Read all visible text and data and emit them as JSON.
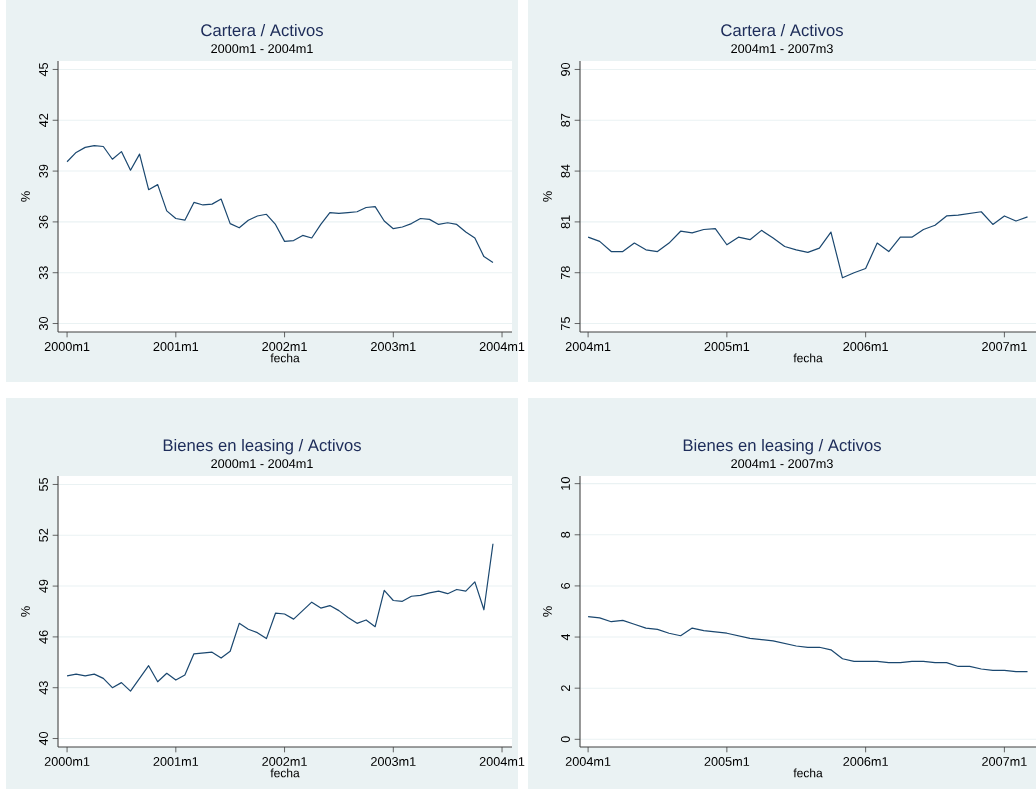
{
  "chart_data": [
    {
      "type": "line",
      "title": "Cartera / Activos",
      "subtitle": "2000m1 - 2004m1",
      "xlabel": "fecha",
      "ylabel": "%",
      "color": "#1a476f",
      "grid": "y",
      "x": [
        "2000-01",
        "2000-02",
        "2000-03",
        "2000-04",
        "2000-05",
        "2000-06",
        "2000-07",
        "2000-08",
        "2000-09",
        "2000-10",
        "2000-11",
        "2000-12",
        "2001-01",
        "2001-02",
        "2001-03",
        "2001-04",
        "2001-05",
        "2001-06",
        "2001-07",
        "2001-08",
        "2001-09",
        "2001-10",
        "2001-11",
        "2001-12",
        "2002-01",
        "2002-02",
        "2002-03",
        "2002-04",
        "2002-05",
        "2002-06",
        "2002-07",
        "2002-08",
        "2002-09",
        "2002-10",
        "2002-11",
        "2002-12",
        "2003-01",
        "2003-02",
        "2003-03",
        "2003-04",
        "2003-05",
        "2003-06",
        "2003-07",
        "2003-08",
        "2003-09",
        "2003-10",
        "2003-11",
        "2003-12"
      ],
      "values": [
        39.55,
        40.1,
        40.4,
        40.5,
        40.45,
        39.7,
        40.15,
        39.05,
        40.0,
        37.9,
        38.2,
        36.65,
        36.2,
        36.1,
        37.15,
        37.0,
        37.05,
        37.35,
        35.9,
        35.65,
        36.1,
        36.35,
        36.45,
        35.85,
        34.85,
        34.9,
        35.2,
        35.05,
        35.85,
        36.55,
        36.5,
        36.55,
        36.6,
        36.85,
        36.9,
        36.05,
        35.6,
        35.7,
        35.9,
        36.2,
        36.15,
        35.85,
        35.95,
        35.85,
        35.4,
        35.05,
        33.95,
        33.6
      ],
      "xlim": [
        "1999-12-01",
        "2004-02-04"
      ],
      "xticks": [
        {
          "value": "2000-01",
          "label": "2000m1"
        },
        {
          "value": "2001-01",
          "label": "2001m1"
        },
        {
          "value": "2002-01",
          "label": "2002m1"
        },
        {
          "value": "2003-01",
          "label": "2003m1"
        },
        {
          "value": "2004-01",
          "label": "2004m1"
        }
      ],
      "ylim": [
        29.5,
        45.5
      ],
      "yticks": [
        30,
        33,
        36,
        39,
        42,
        45
      ]
    },
    {
      "type": "line",
      "title": "Cartera / Activos",
      "subtitle": "2004m1 - 2007m3",
      "xlabel": "fecha",
      "ylabel": "%",
      "color": "#1a476f",
      "grid": "y",
      "x": [
        "2004-01",
        "2004-02",
        "2004-03",
        "2004-04",
        "2004-05",
        "2004-06",
        "2004-07",
        "2004-08",
        "2004-09",
        "2004-10",
        "2004-11",
        "2004-12",
        "2005-01",
        "2005-02",
        "2005-03",
        "2005-04",
        "2005-05",
        "2005-06",
        "2005-07",
        "2005-08",
        "2005-09",
        "2005-10",
        "2005-11",
        "2005-12",
        "2006-01",
        "2006-02",
        "2006-03",
        "2006-04",
        "2006-05",
        "2006-06",
        "2006-07",
        "2006-08",
        "2006-09",
        "2006-10",
        "2006-11",
        "2006-12",
        "2007-01",
        "2007-02",
        "2007-03"
      ],
      "values": [
        80.1,
        79.85,
        79.25,
        79.25,
        79.75,
        79.35,
        79.25,
        79.75,
        80.45,
        80.35,
        80.55,
        80.6,
        79.65,
        80.1,
        79.95,
        80.5,
        80.05,
        79.55,
        79.35,
        79.2,
        79.45,
        80.4,
        77.7,
        78.0,
        78.25,
        79.75,
        79.25,
        80.1,
        80.1,
        80.55,
        80.8,
        81.35,
        81.4,
        81.5,
        81.6,
        80.85,
        81.35,
        81.05,
        81.3
      ],
      "xlim": [
        "2003-12-10",
        "2007-03-23"
      ],
      "xticks": [
        {
          "value": "2004-01",
          "label": "2004m1"
        },
        {
          "value": "2005-01",
          "label": "2005m1"
        },
        {
          "value": "2006-01",
          "label": "2006m1"
        },
        {
          "value": "2007-01",
          "label": "2007m1"
        }
      ],
      "ylim": [
        74.5,
        90.5
      ],
      "yticks": [
        75,
        78,
        81,
        84,
        87,
        90
      ]
    },
    {
      "type": "line",
      "title": "Bienes en leasing / Activos",
      "subtitle": "2000m1 - 2004m1",
      "xlabel": "fecha",
      "ylabel": "%",
      "color": "#1a476f",
      "grid": "y",
      "x": [
        "2000-01",
        "2000-02",
        "2000-03",
        "2000-04",
        "2000-05",
        "2000-06",
        "2000-07",
        "2000-08",
        "2000-09",
        "2000-10",
        "2000-11",
        "2000-12",
        "2001-01",
        "2001-02",
        "2001-03",
        "2001-04",
        "2001-05",
        "2001-06",
        "2001-07",
        "2001-08",
        "2001-09",
        "2001-10",
        "2001-11",
        "2001-12",
        "2002-01",
        "2002-02",
        "2002-03",
        "2002-04",
        "2002-05",
        "2002-06",
        "2002-07",
        "2002-08",
        "2002-09",
        "2002-10",
        "2002-11",
        "2002-12",
        "2003-01",
        "2003-02",
        "2003-03",
        "2003-04",
        "2003-05",
        "2003-06",
        "2003-07",
        "2003-08",
        "2003-09",
        "2003-10",
        "2003-11",
        "2003-12"
      ],
      "values": [
        43.7,
        43.8,
        43.7,
        43.8,
        43.55,
        43.0,
        43.3,
        42.8,
        43.55,
        44.3,
        43.35,
        43.85,
        43.45,
        43.75,
        45.0,
        45.05,
        45.1,
        44.75,
        45.15,
        46.8,
        46.45,
        46.25,
        45.9,
        47.4,
        47.35,
        47.05,
        47.55,
        48.05,
        47.7,
        47.85,
        47.55,
        47.15,
        46.8,
        47.0,
        46.6,
        48.75,
        48.15,
        48.1,
        48.4,
        48.45,
        48.6,
        48.7,
        48.55,
        48.8,
        48.7,
        49.25,
        47.6,
        51.5
      ],
      "xlim": [
        "1999-12-01",
        "2004-02-04"
      ],
      "xticks": [
        {
          "value": "2000-01",
          "label": "2000m1"
        },
        {
          "value": "2001-01",
          "label": "2001m1"
        },
        {
          "value": "2002-01",
          "label": "2002m1"
        },
        {
          "value": "2003-01",
          "label": "2003m1"
        },
        {
          "value": "2004-01",
          "label": "2004m1"
        }
      ],
      "ylim": [
        39.5,
        55.5
      ],
      "yticks": [
        40,
        43,
        46,
        49,
        52,
        55
      ]
    },
    {
      "type": "line",
      "title": "Bienes en leasing / Activos",
      "subtitle": "2004m1 - 2007m3",
      "xlabel": "fecha",
      "ylabel": "%",
      "color": "#1a476f",
      "grid": "y",
      "x": [
        "2004-01",
        "2004-02",
        "2004-03",
        "2004-04",
        "2004-05",
        "2004-06",
        "2004-07",
        "2004-08",
        "2004-09",
        "2004-10",
        "2004-11",
        "2004-12",
        "2005-01",
        "2005-02",
        "2005-03",
        "2005-04",
        "2005-05",
        "2005-06",
        "2005-07",
        "2005-08",
        "2005-09",
        "2005-10",
        "2005-11",
        "2005-12",
        "2006-01",
        "2006-02",
        "2006-03",
        "2006-04",
        "2006-05",
        "2006-06",
        "2006-07",
        "2006-08",
        "2006-09",
        "2006-10",
        "2006-11",
        "2006-12",
        "2007-01",
        "2007-02",
        "2007-03"
      ],
      "values": [
        4.8,
        4.75,
        4.6,
        4.65,
        4.5,
        4.35,
        4.3,
        4.15,
        4.05,
        4.35,
        4.25,
        4.2,
        4.15,
        4.05,
        3.95,
        3.9,
        3.85,
        3.75,
        3.65,
        3.6,
        3.6,
        3.5,
        3.15,
        3.05,
        3.05,
        3.05,
        3.0,
        3.0,
        3.05,
        3.05,
        3.0,
        3.0,
        2.85,
        2.85,
        2.75,
        2.7,
        2.7,
        2.65,
        2.65
      ],
      "xlim": [
        "2003-12-10",
        "2007-03-23"
      ],
      "xticks": [
        {
          "value": "2004-01",
          "label": "2004m1"
        },
        {
          "value": "2005-01",
          "label": "2005m1"
        },
        {
          "value": "2006-01",
          "label": "2006m1"
        },
        {
          "value": "2007-01",
          "label": "2007m1"
        }
      ],
      "ylim": [
        -0.3,
        10.3
      ],
      "yticks": [
        0,
        2,
        4,
        6,
        8,
        10
      ]
    }
  ]
}
